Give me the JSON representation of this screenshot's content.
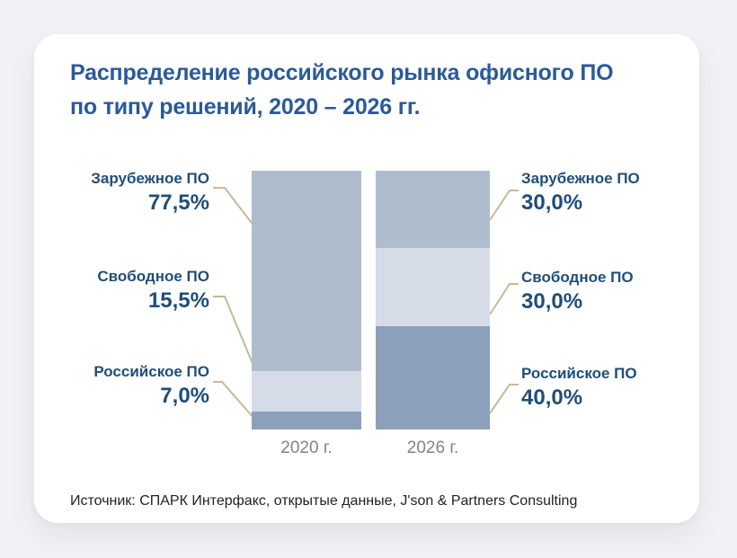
{
  "card": {
    "title": {
      "line1": "Распределение российского рынка офисного ПО",
      "line2": "по типу решений, 2020 – 2026 гг."
    },
    "source": "Источник: СПАРК Интерфакс, открытые данные, J'son & Partners Consulting"
  },
  "chart_data": {
    "type": "bar",
    "stacked": true,
    "unit": "%",
    "title": "Распределение российского рынка офисного ПО по типу решений, 2020 – 2026 гг.",
    "categories": [
      "2020 г.",
      "2026 г."
    ],
    "series": [
      {
        "name": "Зарубежное ПО",
        "values": [
          77.5,
          30.0
        ],
        "color": "#aebccd"
      },
      {
        "name": "Свободное ПО",
        "values": [
          15.5,
          30.0
        ],
        "color": "#d6dce7"
      },
      {
        "name": "Российское ПО",
        "values": [
          7.0,
          40.0
        ],
        "color": "#8ca0bc"
      }
    ],
    "ylim": [
      0,
      100
    ],
    "grid": false,
    "legend_position": "callouts-both-sides",
    "segment_order_top_to_bottom": [
      "Зарубежное ПО",
      "Свободное ПО",
      "Российское ПО"
    ]
  },
  "callouts": {
    "left": [
      {
        "label": "Зарубежное ПО",
        "value": "77,5%"
      },
      {
        "label": "Свободное ПО",
        "value": "15,5%"
      },
      {
        "label": "Российское ПО",
        "value": "7,0%"
      }
    ],
    "right": [
      {
        "label": "Зарубежное ПО",
        "value": "30,0%"
      },
      {
        "label": "Свободное ПО",
        "value": "30,0%"
      },
      {
        "label": "Российское ПО",
        "value": "40,0%"
      }
    ]
  },
  "colors": {
    "title_text": "#2b5a97",
    "callout_text": "#1f4e79",
    "leader_line": "#c5b996",
    "axis_label": "#838383",
    "segment_foreign": "#aebccd",
    "segment_free": "#d6dce7",
    "segment_russian": "#8ca0bc",
    "card_background": "#ffffff",
    "page_background": "#f1f2f5"
  }
}
